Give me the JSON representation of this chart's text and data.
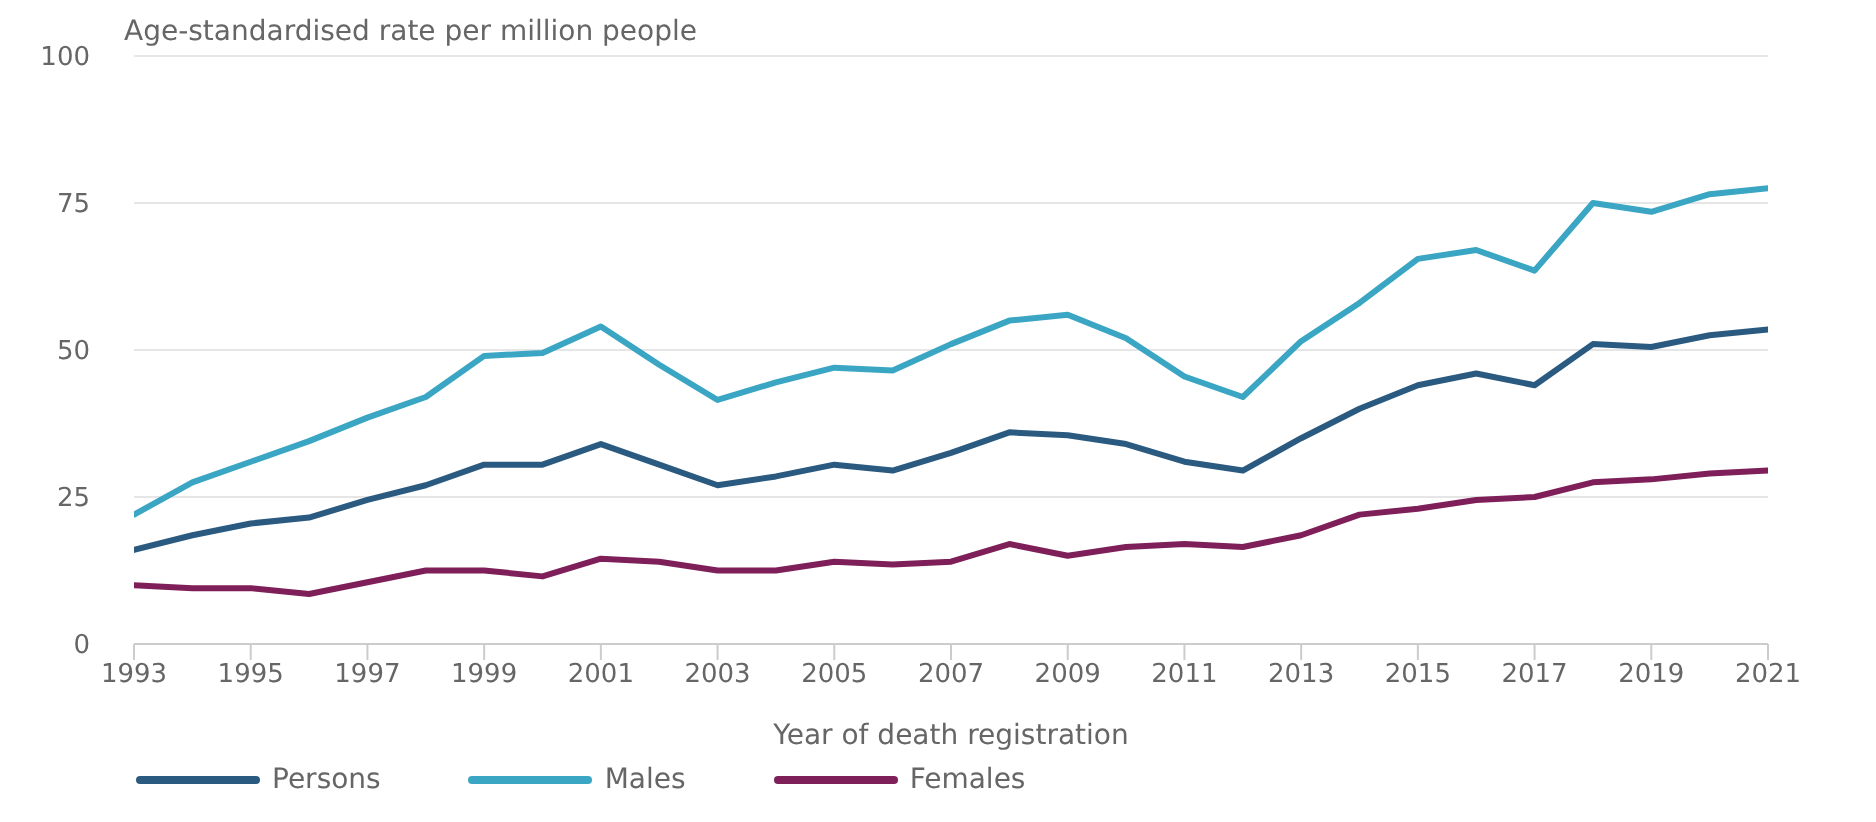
{
  "chart_data": {
    "type": "line",
    "ylabel": "Age-standardised rate per million people",
    "xlabel": "Year of death registration",
    "x": [
      1993,
      1994,
      1995,
      1996,
      1997,
      1998,
      1999,
      2000,
      2001,
      2002,
      2003,
      2004,
      2005,
      2006,
      2007,
      2008,
      2009,
      2010,
      2011,
      2012,
      2013,
      2014,
      2015,
      2016,
      2017,
      2018,
      2019,
      2020,
      2021
    ],
    "series": [
      {
        "name": "Persons",
        "color": "#2a5a80",
        "values": [
          16,
          18.5,
          20.5,
          21.5,
          24.5,
          27,
          30.5,
          30.5,
          34,
          30.5,
          27,
          28.5,
          30.5,
          29.5,
          32.5,
          36,
          35.5,
          34,
          31,
          29.5,
          35,
          40,
          44,
          46,
          44,
          51,
          50.5,
          52.5,
          53.5
        ]
      },
      {
        "name": "Males",
        "color": "#3aa6c4",
        "values": [
          22,
          27.5,
          31,
          34.5,
          38.5,
          42,
          49,
          49.5,
          54,
          47.5,
          41.5,
          44.5,
          47,
          46.5,
          51,
          55,
          56,
          52,
          45.5,
          42,
          51.5,
          58,
          65.5,
          67,
          63.5,
          75,
          73.5,
          76.5,
          77.5
        ]
      },
      {
        "name": "Females",
        "color": "#7e1f5a",
        "values": [
          10,
          9.5,
          9.5,
          8.5,
          10.5,
          12.5,
          12.5,
          11.5,
          14.5,
          14,
          12.5,
          12.5,
          14,
          13.5,
          14,
          17,
          15,
          16.5,
          17,
          16.5,
          18.5,
          22,
          23,
          24.5,
          25,
          27.5,
          28,
          29,
          29.5
        ]
      }
    ],
    "xlim": [
      1993,
      2021
    ],
    "xticks": [
      1993,
      1995,
      1997,
      1999,
      2001,
      2003,
      2005,
      2007,
      2009,
      2011,
      2013,
      2015,
      2017,
      2019,
      2021
    ],
    "ylim": [
      0,
      100
    ],
    "yticks": [
      0,
      25,
      50,
      75,
      100
    ],
    "grid": "y",
    "legend": "bottom left",
    "marker": "none",
    "line_style": "solid"
  }
}
